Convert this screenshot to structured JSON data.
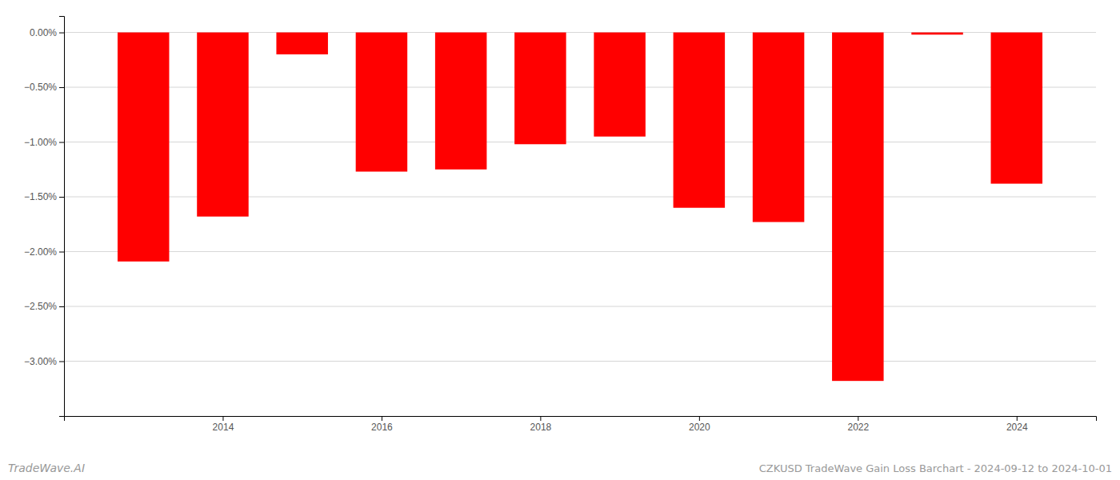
{
  "chart_data": {
    "type": "bar",
    "title": "CZKUSD TradeWave Gain Loss Barchart - 2024-09-12 to 2024-10-01",
    "annotations": [
      "TradeWave.AI"
    ],
    "x": [
      2013,
      2014,
      2015,
      2016,
      2017,
      2018,
      2019,
      2020,
      2021,
      2022,
      2023,
      2024
    ],
    "values": [
      -2.09,
      -1.68,
      -0.2,
      -1.27,
      -1.25,
      -1.02,
      -0.95,
      -1.6,
      -1.73,
      -3.18,
      -0.02,
      -1.38
    ],
    "color": "#ff0000",
    "xlim": [
      2012,
      2025
    ],
    "xticks": [
      2014,
      2016,
      2018,
      2020,
      2022,
      2024
    ],
    "ylim": [
      -3.5,
      0.15
    ],
    "yticks": [
      {
        "value": 0.0,
        "label": "0.00%"
      },
      {
        "value": -0.5,
        "label": "−0.50%"
      },
      {
        "value": -1.0,
        "label": "−1.00%"
      },
      {
        "value": -1.5,
        "label": "−1.50%"
      },
      {
        "value": -2.0,
        "label": "−2.00%"
      },
      {
        "value": -2.5,
        "label": "−2.50%"
      },
      {
        "value": -3.0,
        "label": "−3.00%"
      }
    ],
    "grid": true
  }
}
